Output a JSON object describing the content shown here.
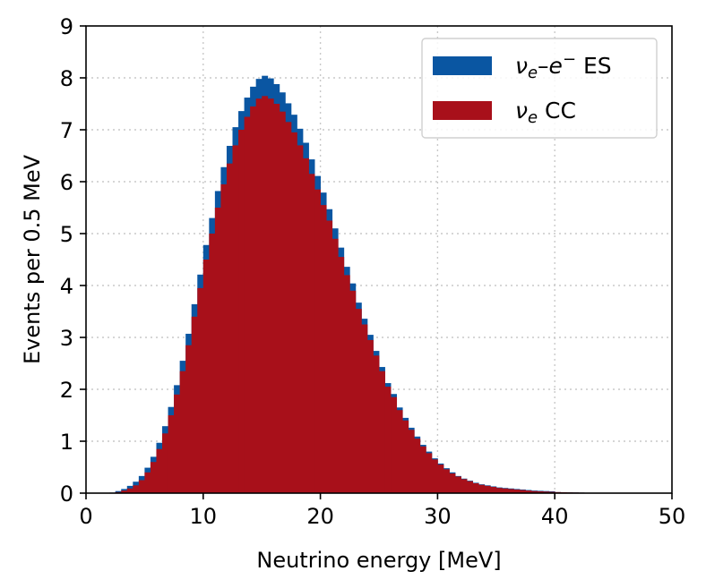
{
  "chart_data": {
    "type": "bar",
    "subtype": "stacked-step-histogram",
    "xlabel": "Neutrino energy [MeV]",
    "ylabel": "Events per 0.5 MeV",
    "xlim": [
      0,
      50
    ],
    "ylim": [
      0,
      9
    ],
    "xticks": [
      0,
      10,
      20,
      30,
      40,
      50
    ],
    "yticks": [
      0,
      1,
      2,
      3,
      4,
      5,
      6,
      7,
      8,
      9
    ],
    "grid": "dotted",
    "legend_position": "top-right",
    "bin_width": 0.5,
    "bin_start": 0,
    "colors": {
      "es": "#0a56a2",
      "cc": "#a8101a",
      "grid": "#c8c8c8"
    },
    "series": [
      {
        "name": "ν_e–e⁻ ES",
        "key": "es",
        "label_base": "ν",
        "label_sub": "e",
        "label_mid": "–e",
        "label_sup": "−",
        "label_tail": " ES",
        "values": [
          0,
          0,
          0,
          0,
          0.01,
          0.02,
          0.03,
          0.05,
          0.07,
          0.08,
          0.09,
          0.1,
          0.12,
          0.14,
          0.16,
          0.18,
          0.2,
          0.22,
          0.24,
          0.26,
          0.28,
          0.3,
          0.32,
          0.33,
          0.34,
          0.35,
          0.36,
          0.37,
          0.38,
          0.38,
          0.39,
          0.39,
          0.38,
          0.37,
          0.36,
          0.34,
          0.32,
          0.3,
          0.28,
          0.26,
          0.24,
          0.22,
          0.2,
          0.18,
          0.16,
          0.14,
          0.12,
          0.11,
          0.1,
          0.09,
          0.08,
          0.07,
          0.06,
          0.05,
          0.05,
          0.04,
          0.04,
          0.03,
          0.03,
          0.02,
          0.02,
          0.02,
          0.02,
          0.01,
          0.01,
          0.01,
          0.01,
          0.01,
          0.01,
          0.01,
          0.01,
          0.01,
          0.01,
          0.01,
          0.01,
          0.01,
          0.01,
          0.01,
          0.01,
          0.01,
          0,
          0,
          0,
          0,
          0,
          0,
          0,
          0,
          0,
          0,
          0,
          0,
          0,
          0,
          0,
          0,
          0,
          0,
          0,
          0
        ]
      },
      {
        "name": "ν_e CC",
        "key": "cc",
        "label_base": "ν",
        "label_sub": "e",
        "label_mid": "",
        "label_sup": "",
        "label_tail": " CC",
        "values": [
          0,
          0,
          0,
          0,
          0,
          0.02,
          0.05,
          0.09,
          0.15,
          0.25,
          0.4,
          0.6,
          0.85,
          1.15,
          1.5,
          1.9,
          2.35,
          2.85,
          3.4,
          3.95,
          4.5,
          5.0,
          5.5,
          5.95,
          6.35,
          6.7,
          7.0,
          7.25,
          7.45,
          7.6,
          7.65,
          7.6,
          7.5,
          7.35,
          7.15,
          6.95,
          6.7,
          6.45,
          6.15,
          5.85,
          5.55,
          5.25,
          4.9,
          4.55,
          4.2,
          3.9,
          3.55,
          3.25,
          2.95,
          2.65,
          2.35,
          2.05,
          1.85,
          1.6,
          1.4,
          1.22,
          1.05,
          0.9,
          0.77,
          0.65,
          0.55,
          0.46,
          0.38,
          0.32,
          0.27,
          0.23,
          0.19,
          0.16,
          0.14,
          0.12,
          0.1,
          0.09,
          0.08,
          0.07,
          0.06,
          0.05,
          0.04,
          0.035,
          0.03,
          0.025,
          0.02,
          0.017,
          0.014,
          0.012,
          0.01,
          0.008,
          0.006,
          0.005,
          0.004,
          0.003,
          0.002,
          0.002,
          0.001,
          0.001,
          0,
          0,
          0,
          0,
          0,
          0
        ]
      }
    ]
  }
}
